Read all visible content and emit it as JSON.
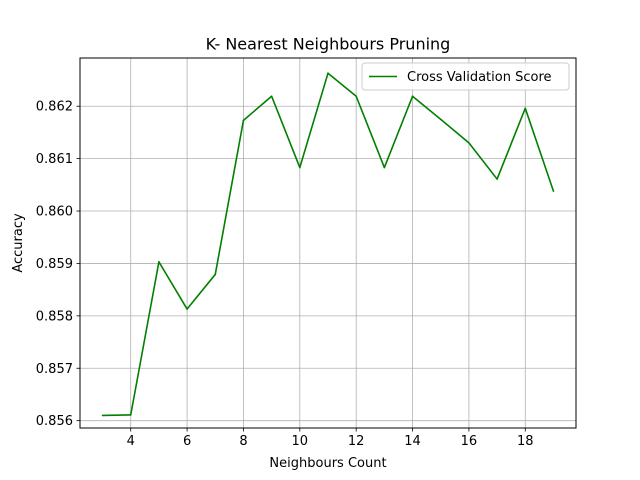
{
  "chart_data": {
    "type": "line",
    "title": "K- Nearest Neighbours Pruning",
    "xlabel": "Neighbours Count",
    "ylabel": "Accuracy",
    "xlim": [
      2.2,
      19.8
    ],
    "ylim": [
      0.85586,
      0.86292
    ],
    "xticks": [
      4,
      6,
      8,
      10,
      12,
      14,
      16,
      18
    ],
    "xtick_labels": [
      "4",
      "6",
      "8",
      "10",
      "12",
      "14",
      "16",
      "18"
    ],
    "yticks": [
      0.856,
      0.857,
      0.858,
      0.859,
      0.86,
      0.861,
      0.862
    ],
    "ytick_labels": [
      "0.856",
      "0.857",
      "0.858",
      "0.859",
      "0.860",
      "0.861",
      "0.862"
    ],
    "grid": true,
    "legend_position": "top-right",
    "series": [
      {
        "name": "Cross Validation Score",
        "color": "#008000",
        "x": [
          3,
          4,
          5,
          6,
          7,
          8,
          9,
          10,
          11,
          12,
          13,
          14,
          15,
          16,
          17,
          18,
          19
        ],
        "y": [
          0.8561,
          0.85611,
          0.85903,
          0.85813,
          0.85879,
          0.86173,
          0.86219,
          0.86083,
          0.86263,
          0.86219,
          0.86083,
          0.86219,
          0.86175,
          0.8613,
          0.86061,
          0.86196,
          0.86038
        ]
      }
    ]
  }
}
